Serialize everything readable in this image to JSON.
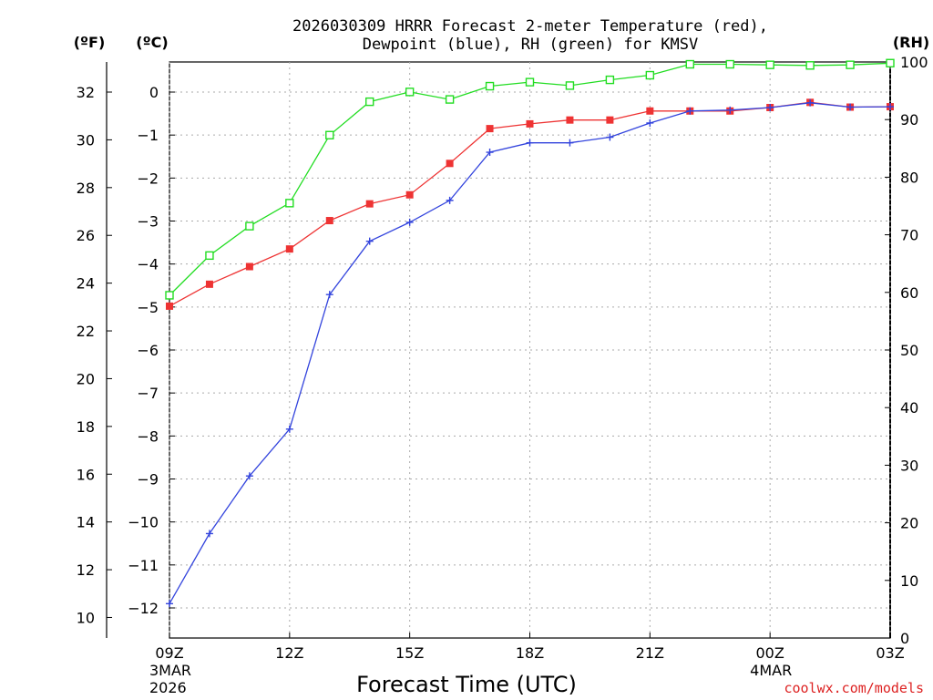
{
  "chart_data": {
    "type": "line",
    "title_line1": "2026030309 HRRR Forecast 2-meter Temperature (red),",
    "title_line2": "Dewpoint (blue), RH (green) for KMSV",
    "xlabel": "Forecast Time (UTC)",
    "credit": "coolwx.com/models",
    "units": {
      "fahrenheit": "(ºF)",
      "celsius": "(ºC)",
      "rh": "(RH)"
    },
    "x_hours": [
      0,
      1,
      2,
      3,
      4,
      5,
      6,
      7,
      8,
      9,
      10,
      11,
      12,
      13,
      14,
      15,
      16,
      17,
      18
    ],
    "x_ticks": [
      {
        "hour": 0,
        "label": "09Z",
        "sub1": "3MAR",
        "sub2": "2026"
      },
      {
        "hour": 3,
        "label": "12Z",
        "sub1": "",
        "sub2": ""
      },
      {
        "hour": 6,
        "label": "15Z",
        "sub1": "",
        "sub2": ""
      },
      {
        "hour": 9,
        "label": "18Z",
        "sub1": "",
        "sub2": ""
      },
      {
        "hour": 12,
        "label": "21Z",
        "sub1": "",
        "sub2": ""
      },
      {
        "hour": 15,
        "label": "00Z",
        "sub1": "4MAR",
        "sub2": ""
      },
      {
        "hour": 18,
        "label": "03Z",
        "sub1": "",
        "sub2": ""
      }
    ],
    "celsius_range": [
      -12.7,
      0.7
    ],
    "celsius_ticks": [
      "0",
      "−1",
      "−2",
      "−3",
      "−4",
      "−5",
      "−6",
      "−7",
      "−8",
      "−9",
      "−10",
      "−11",
      "−12"
    ],
    "fahrenheit_ticks": [
      "32",
      "30",
      "28",
      "26",
      "24",
      "22",
      "20",
      "18",
      "16",
      "14",
      "12",
      "10"
    ],
    "rh_range": [
      0,
      100
    ],
    "rh_ticks": [
      "100",
      "90",
      "80",
      "70",
      "60",
      "50",
      "40",
      "30",
      "20",
      "10",
      "0"
    ],
    "series": [
      {
        "name": "Temperature",
        "color": "#ee3333",
        "marker": "filled-square",
        "axis": "celsius",
        "values": [
          -4.98,
          -4.47,
          -4.06,
          -3.65,
          -2.99,
          -2.6,
          -2.39,
          -1.66,
          -0.85,
          -0.74,
          -0.65,
          -0.65,
          -0.44,
          -0.44,
          -0.44,
          -0.36,
          -0.24,
          -0.35,
          -0.34
        ]
      },
      {
        "name": "Dewpoint",
        "color": "#3344dd",
        "marker": "plus",
        "axis": "celsius",
        "values": [
          -11.9,
          -10.27,
          -8.93,
          -7.84,
          -4.71,
          -3.47,
          -3.03,
          -2.52,
          -1.4,
          -1.18,
          -1.18,
          -1.05,
          -0.72,
          -0.44,
          -0.42,
          -0.36,
          -0.25,
          -0.35,
          -0.34
        ]
      },
      {
        "name": "RH",
        "color": "#22dd22",
        "marker": "open-square",
        "axis": "rh",
        "values": [
          59.5,
          66.4,
          71.5,
          75.5,
          87.3,
          93.1,
          94.8,
          93.5,
          95.8,
          96.5,
          95.9,
          96.9,
          97.7,
          99.6,
          99.6,
          99.5,
          99.4,
          99.5,
          99.8
        ]
      }
    ]
  }
}
